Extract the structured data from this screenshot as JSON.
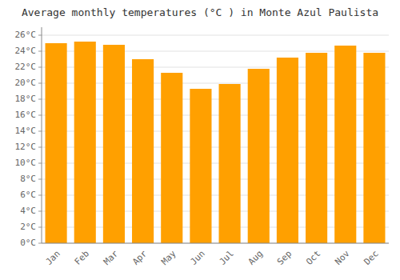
{
  "chart_data": {
    "type": "bar",
    "title": "Average monthly temperatures (°C ) in Monte Azul Paulista",
    "categories": [
      "Jan",
      "Feb",
      "Mar",
      "Apr",
      "May",
      "Jun",
      "Jul",
      "Aug",
      "Sep",
      "Oct",
      "Nov",
      "Dec"
    ],
    "values": [
      25.0,
      25.2,
      24.8,
      23.0,
      21.3,
      19.3,
      19.9,
      21.8,
      23.2,
      23.8,
      24.7,
      23.8
    ],
    "color": "#FFA000",
    "ylim": [
      0,
      27
    ],
    "yticks": [
      {
        "value": 0,
        "label": "0°C"
      },
      {
        "value": 2,
        "label": "2°C"
      },
      {
        "value": 4,
        "label": "4°C"
      },
      {
        "value": 6,
        "label": "6°C"
      },
      {
        "value": 8,
        "label": "8°C"
      },
      {
        "value": 10,
        "label": "10°C"
      },
      {
        "value": 12,
        "label": "12°C"
      },
      {
        "value": 14,
        "label": "14°C"
      },
      {
        "value": 16,
        "label": "16°C"
      },
      {
        "value": 18,
        "label": "18°C"
      },
      {
        "value": 20,
        "label": "20°C"
      },
      {
        "value": 22,
        "label": "22°C"
      },
      {
        "value": 24,
        "label": "24°C"
      },
      {
        "value": 26,
        "label": "26°C"
      }
    ],
    "grid": true
  }
}
